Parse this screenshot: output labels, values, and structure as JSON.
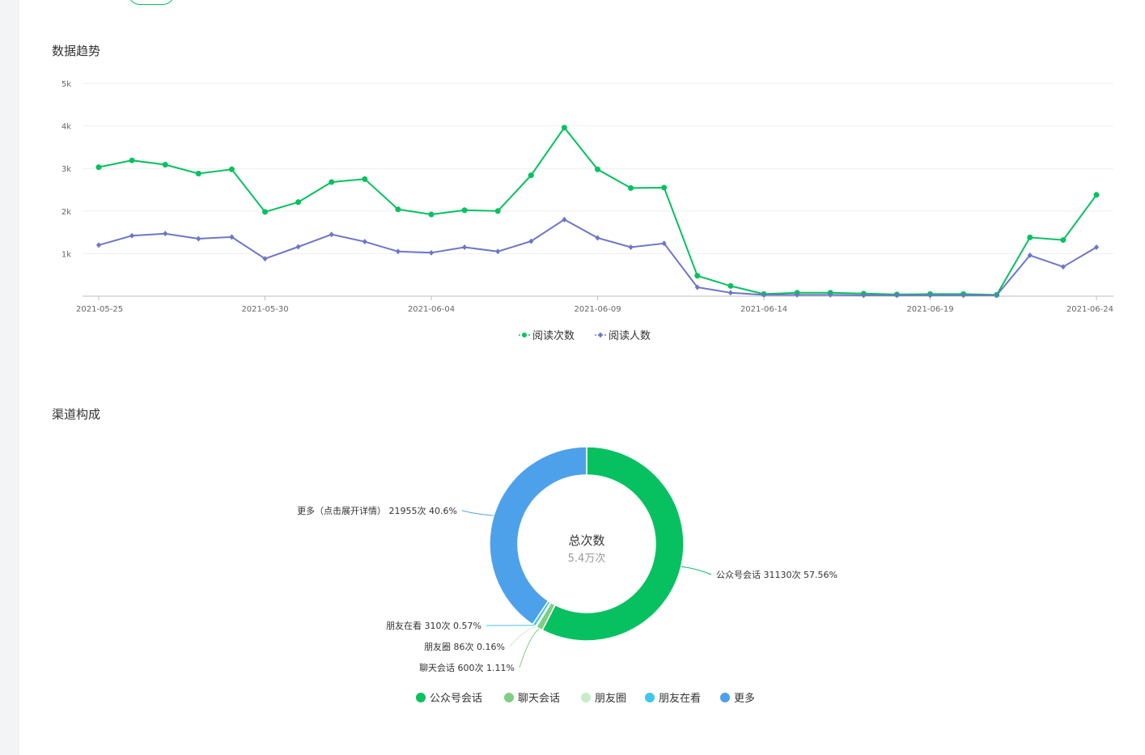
{
  "header": {
    "partial_label": "",
    "partial_pill": ""
  },
  "sections": {
    "trend_title": "数据趋势",
    "channel_title": "渠道构成"
  },
  "colors": {
    "green": "#07c160",
    "purple": "#6c76c8",
    "blue": "#4da1ea"
  },
  "chart_data": [
    {
      "type": "line",
      "ylim": [
        0,
        5000
      ],
      "y_ticks": [
        "1k",
        "2k",
        "3k",
        "4k",
        "5k"
      ],
      "x": [
        "2021-05-25",
        "2021-05-26",
        "2021-05-27",
        "2021-05-28",
        "2021-05-29",
        "2021-05-30",
        "2021-05-31",
        "2021-06-01",
        "2021-06-02",
        "2021-06-03",
        "2021-06-04",
        "2021-06-05",
        "2021-06-06",
        "2021-06-07",
        "2021-06-08",
        "2021-06-09",
        "2021-06-10",
        "2021-06-11",
        "2021-06-12",
        "2021-06-13",
        "2021-06-14",
        "2021-06-15",
        "2021-06-16",
        "2021-06-17",
        "2021-06-18",
        "2021-06-19",
        "2021-06-20",
        "2021-06-21",
        "2021-06-22",
        "2021-06-23",
        "2021-06-24"
      ],
      "x_tick_labels": [
        "2021-05-25",
        "2021-05-30",
        "2021-06-04",
        "2021-06-09",
        "2021-06-14",
        "2021-06-19",
        "2021-06-24"
      ],
      "grid": true,
      "legend_position": "bottom-center",
      "series": [
        {
          "name": "阅读次数",
          "color": "#07c160",
          "marker": "circle",
          "values": [
            3030,
            3190,
            3090,
            2880,
            2980,
            1980,
            2210,
            2680,
            2750,
            2040,
            1920,
            2020,
            2000,
            2840,
            3960,
            2980,
            2540,
            2550,
            480,
            240,
            50,
            80,
            80,
            60,
            40,
            50,
            50,
            30,
            1380,
            1320,
            2380
          ]
        },
        {
          "name": "阅读人数",
          "color": "#6c76c8",
          "marker": "diamond",
          "values": [
            1200,
            1420,
            1470,
            1350,
            1390,
            880,
            1160,
            1450,
            1280,
            1050,
            1020,
            1150,
            1050,
            1290,
            1800,
            1370,
            1150,
            1240,
            210,
            80,
            30,
            30,
            30,
            20,
            20,
            20,
            20,
            20,
            960,
            690,
            1150
          ]
        }
      ]
    },
    {
      "type": "pie",
      "center_title": "总次数",
      "center_value": "5.4万次",
      "legend_position": "bottom-center",
      "slices": [
        {
          "name": "公众号会话",
          "value": 31130,
          "label": "公众号会话 31130次 57.56%",
          "color": "#07c160"
        },
        {
          "name": "聊天会话",
          "value": 600,
          "label": "聊天会话 600次 1.11%",
          "color": "#7ece84"
        },
        {
          "name": "朋友圈",
          "value": 86,
          "label": "朋友圈 86次 0.16%",
          "color": "#c8ecc9"
        },
        {
          "name": "朋友在看",
          "value": 310,
          "label": "朋友在看 310次 0.57%",
          "color": "#3ec8e6"
        },
        {
          "name": "更多",
          "value": 21955,
          "label": "更多（点击展开详情） 21955次 40.6%",
          "color": "#4da1ea"
        }
      ]
    }
  ]
}
